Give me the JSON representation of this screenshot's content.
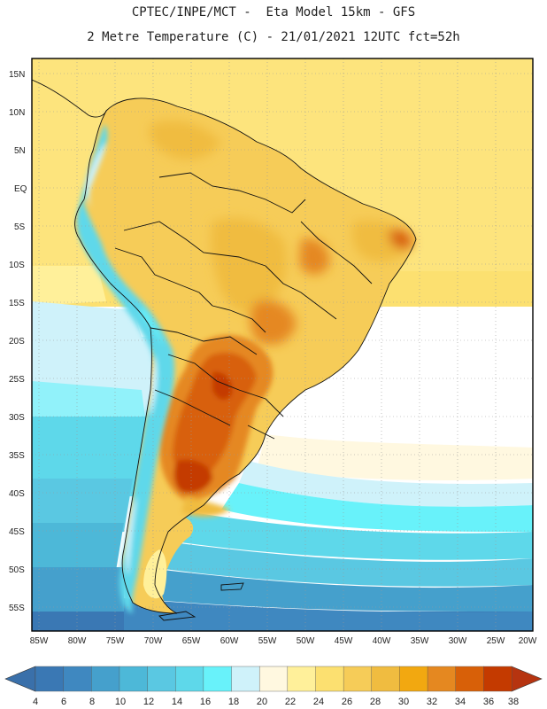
{
  "header": {
    "line1": "CPTEC/INPE/MCT -  Eta Model 15km - GFS",
    "line2": "2 Metre Temperature (C) - 21/01/2021 12UTC fct=52h"
  },
  "map": {
    "lat_labels": [
      "15N",
      "10N",
      "5N",
      "EQ",
      "5S",
      "10S",
      "15S",
      "20S",
      "25S",
      "30S",
      "35S",
      "40S",
      "45S",
      "50S",
      "55S"
    ],
    "lon_labels": [
      "85W",
      "80W",
      "75W",
      "70W",
      "65W",
      "60W",
      "55W",
      "50W",
      "45W",
      "40W",
      "35W",
      "30W",
      "25W",
      "20W"
    ],
    "extent": {
      "lon_min": -86,
      "lon_max": -20,
      "lat_min": -57,
      "lat_max": 16
    }
  },
  "colorbar": {
    "labels": [
      "4",
      "6",
      "8",
      "10",
      "12",
      "14",
      "16",
      "18",
      "20",
      "22",
      "24",
      "26",
      "28",
      "30",
      "32",
      "34",
      "36",
      "38"
    ],
    "colors": [
      "#3a78b4",
      "#3f88c0",
      "#45a0cc",
      "#4db8d8",
      "#5ac8e2",
      "#5ed8ea",
      "#68f2fa",
      "#cff2fa",
      "#fff8e0",
      "#fff09a",
      "#fce070",
      "#f6cc58",
      "#f0bc40",
      "#f2a810",
      "#e58820",
      "#d86008",
      "#c43a00"
    ],
    "low_end_color": "#3a70aa",
    "high_end_color": "#b63410"
  }
}
